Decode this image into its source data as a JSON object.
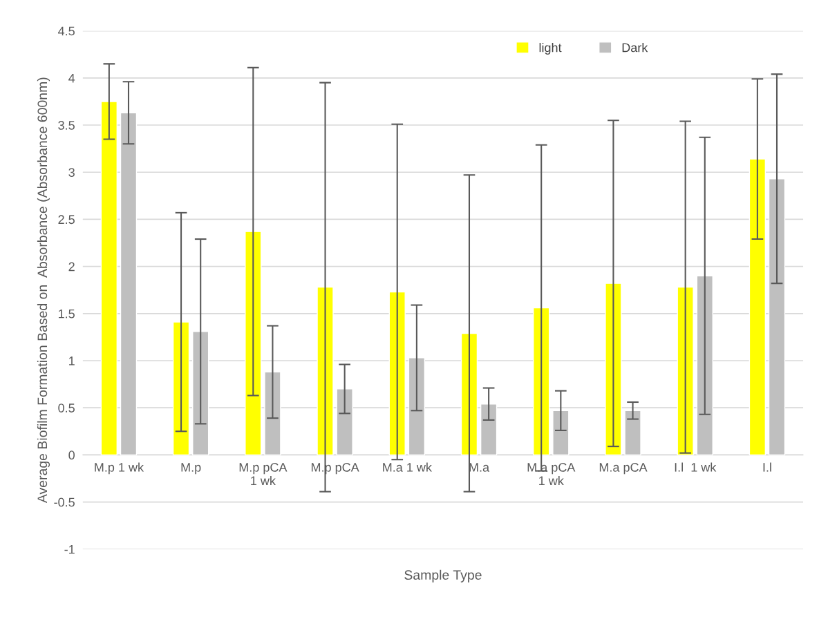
{
  "chart_data": {
    "type": "bar",
    "xlabel": "Sample Type",
    "ylabel": "Average Biofilm Formation Based on  Absorbance (Absorbance 600nm)",
    "categories": [
      "M.p 1 wk",
      "M.p",
      "M.p pCA\n1 wk",
      "M.p pCA",
      "M.a 1 wk",
      "M.a",
      "M.a pCA\n1 wk",
      "M.a pCA",
      "I.l  1 wk",
      "I.l"
    ],
    "series": [
      {
        "name": "light",
        "color": "#ffff00",
        "values": [
          3.75,
          1.41,
          2.37,
          1.78,
          1.73,
          1.29,
          1.56,
          1.82,
          1.78,
          3.14
        ],
        "errors": [
          0.4,
          1.16,
          1.74,
          2.17,
          1.78,
          1.68,
          1.73,
          1.73,
          1.76,
          0.85
        ]
      },
      {
        "name": "Dark",
        "color": "#bfbfbf",
        "values": [
          3.63,
          1.31,
          0.88,
          0.7,
          1.03,
          0.54,
          0.47,
          0.47,
          1.9,
          2.93
        ],
        "errors": [
          0.33,
          0.98,
          0.49,
          0.26,
          0.56,
          0.17,
          0.21,
          0.09,
          1.47,
          1.11
        ]
      }
    ],
    "ylim": [
      -1,
      4.5
    ],
    "yticks": [
      -1,
      -0.5,
      0,
      0.5,
      1,
      1.5,
      2,
      2.5,
      3,
      3.5,
      4,
      4.5
    ],
    "grid": "y",
    "legend": "top right"
  }
}
